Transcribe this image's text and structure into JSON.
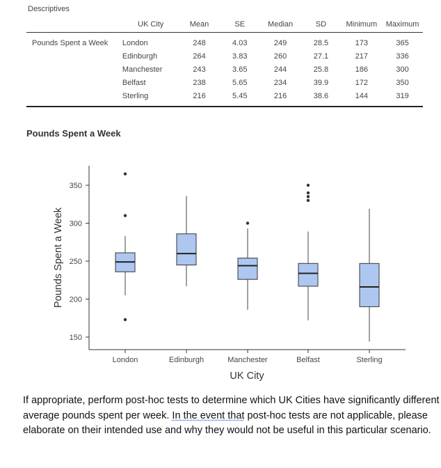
{
  "descriptives": {
    "title": "Descriptives",
    "columns": [
      "",
      "UK City",
      "Mean",
      "SE",
      "Median",
      "SD",
      "Minimum",
      "Maximum"
    ],
    "variable": "Pounds Spent a Week",
    "rows": [
      {
        "city": "London",
        "mean": "248",
        "se": "4.03",
        "median": "249",
        "sd": "28.5",
        "min": "173",
        "max": "365"
      },
      {
        "city": "Edinburgh",
        "mean": "264",
        "se": "3.83",
        "median": "260",
        "sd": "27.1",
        "min": "217",
        "max": "336"
      },
      {
        "city": "Manchester",
        "mean": "243",
        "se": "3.65",
        "median": "244",
        "sd": "25.8",
        "min": "186",
        "max": "300"
      },
      {
        "city": "Belfast",
        "mean": "238",
        "se": "5.65",
        "median": "234",
        "sd": "39.9",
        "min": "172",
        "max": "350"
      },
      {
        "city": "Sterling",
        "mean": "216",
        "se": "5.45",
        "median": "216",
        "sd": "38.6",
        "min": "144",
        "max": "319"
      }
    ]
  },
  "chart_data": {
    "type": "boxplot",
    "title": "Pounds Spent a Week",
    "xlabel": "UK City",
    "ylabel": "Pounds Spent a Week",
    "ylim": [
      140,
      375
    ],
    "yticks": [
      150,
      200,
      250,
      300,
      350
    ],
    "box_color": "#aec7f0",
    "categories": [
      "London",
      "Edinburgh",
      "Manchester",
      "Belfast",
      "Sterling"
    ],
    "boxes": [
      {
        "name": "London",
        "whisker_low": 205,
        "q1": 236,
        "median": 249,
        "q3": 261,
        "whisker_high": 283,
        "outliers": [
          173,
          310,
          365
        ]
      },
      {
        "name": "Edinburgh",
        "whisker_low": 217,
        "q1": 245,
        "median": 260,
        "q3": 286,
        "whisker_high": 336,
        "outliers": []
      },
      {
        "name": "Manchester",
        "whisker_low": 186,
        "q1": 226,
        "median": 244,
        "q3": 254,
        "whisker_high": 293,
        "outliers": [
          300
        ]
      },
      {
        "name": "Belfast",
        "whisker_low": 172,
        "q1": 217,
        "median": 234,
        "q3": 247,
        "whisker_high": 289,
        "outliers": [
          330,
          335,
          340,
          350
        ]
      },
      {
        "name": "Sterling",
        "whisker_low": 144,
        "q1": 190,
        "median": 216,
        "q3": 247,
        "whisker_high": 319,
        "outliers": []
      }
    ]
  },
  "question": {
    "part1": "If appropriate, perform post-hoc tests to determine which UK Cities have significantly different average pounds spent per week.  ",
    "marked": "In the event that",
    "part2": " post-hoc tests are not applicable, please elaborate on their intended use and why they would not be useful in this particular scenario."
  }
}
